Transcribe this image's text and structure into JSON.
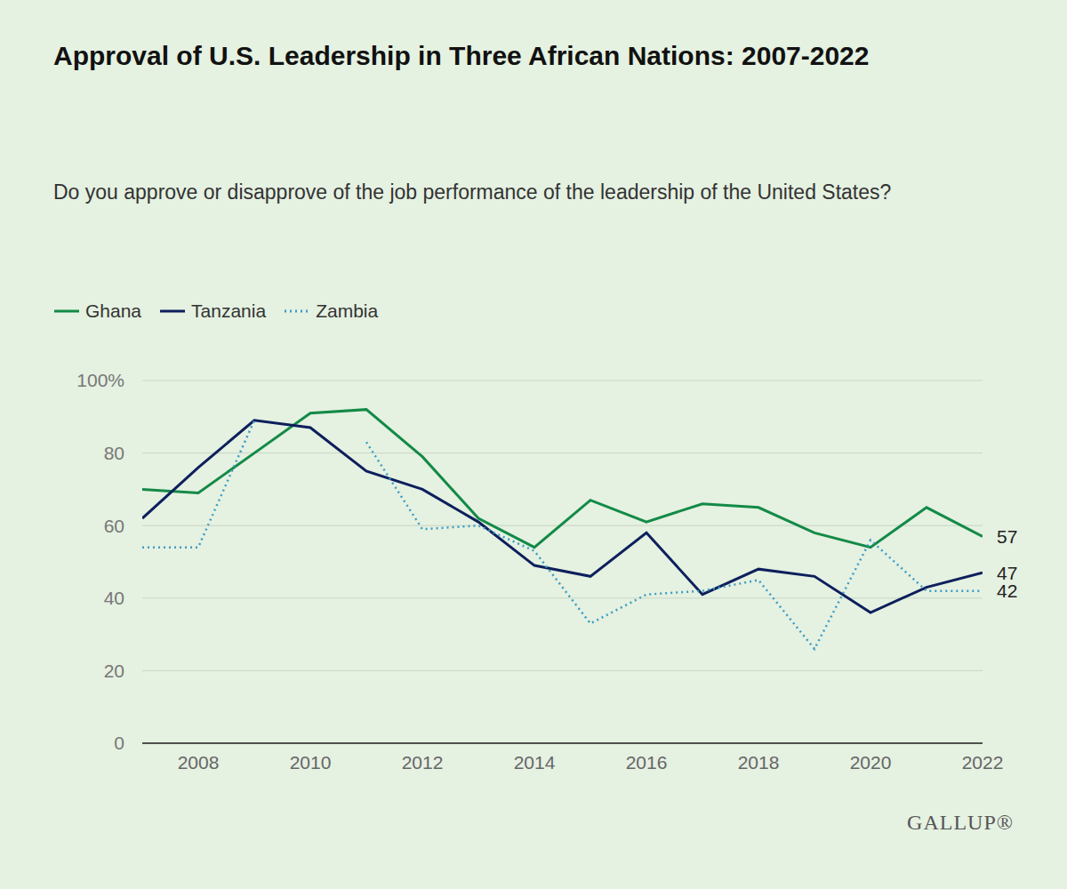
{
  "chart_data": {
    "type": "line",
    "title": "Approval of U.S. Leadership in Three African Nations: 2007-2022",
    "subtitle": "Do you approve or disapprove of the job performance of the leadership of the United States?",
    "source": "GALLUP®",
    "x": [
      2007,
      2008,
      2009,
      2010,
      2011,
      2012,
      2013,
      2014,
      2015,
      2016,
      2017,
      2018,
      2019,
      2020,
      2021,
      2022
    ],
    "series": [
      {
        "name": "Ghana",
        "color": "#138a47",
        "line_style": "solid",
        "values": [
          70,
          69,
          80,
          91,
          92,
          79,
          62,
          54,
          67,
          61,
          66,
          65,
          58,
          54,
          65,
          57
        ]
      },
      {
        "name": "Tanzania",
        "color": "#0d1f5c",
        "line_style": "solid",
        "values": [
          62,
          76,
          89,
          87,
          75,
          70,
          61,
          49,
          46,
          58,
          41,
          48,
          46,
          36,
          43,
          47
        ]
      },
      {
        "name": "Zambia",
        "color": "#3a9ec4",
        "line_style": "dotted",
        "values": [
          54,
          54,
          89,
          null,
          83,
          59,
          60,
          53,
          33,
          41,
          42,
          45,
          26,
          56,
          42,
          42
        ]
      }
    ],
    "xlim": [
      2007,
      2022
    ],
    "xticks": [
      2008,
      2010,
      2012,
      2014,
      2016,
      2018,
      2020,
      2022
    ],
    "ylim": [
      0,
      100
    ],
    "yticks": [
      0,
      20,
      40,
      60,
      80,
      {
        "value": 100,
        "label": "100%"
      }
    ],
    "grid": true,
    "legend": "top-left",
    "annotations": [
      {
        "x": 2022,
        "y": 57,
        "text": "57"
      },
      {
        "x": 2022,
        "y": 47,
        "text": "47"
      },
      {
        "x": 2022,
        "y": 42,
        "text": "42"
      }
    ]
  }
}
